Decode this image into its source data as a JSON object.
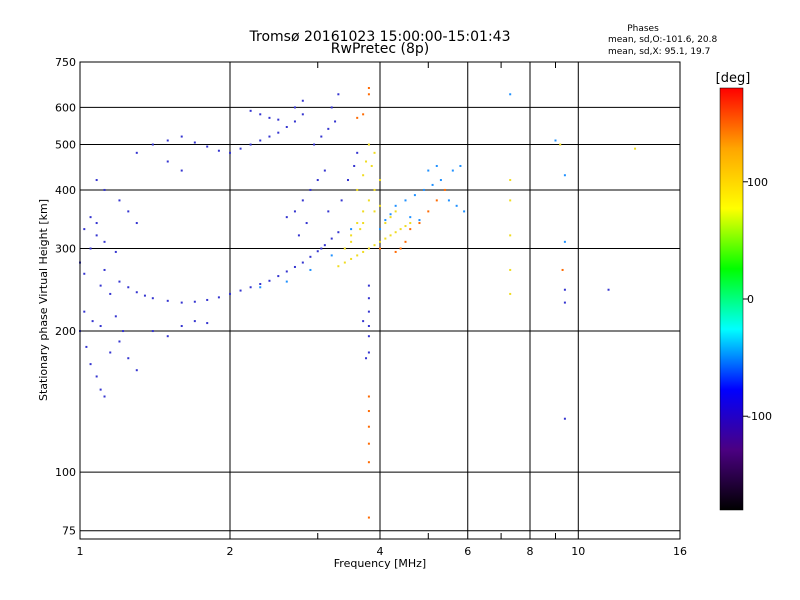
{
  "chart_data": {
    "type": "scatter",
    "title": "Tromsø 20161023 15:00:00-15:01:43",
    "subtitle": "RwPretec (8p)",
    "xlabel": "Frequency [MHz]",
    "ylabel": "Stationary phase Virtual Height [km]",
    "x_scale": "log",
    "y_scale": "log",
    "xlim": [
      1,
      16
    ],
    "ylim": [
      72,
      750
    ],
    "x_ticks": [
      1,
      2,
      4,
      6,
      8,
      10,
      16
    ],
    "x_tick_labels": [
      "1",
      "2",
      "4",
      "6",
      "8",
      "10",
      "16"
    ],
    "x_minor_ticks": [
      3,
      5,
      7,
      9
    ],
    "y_ticks": [
      75,
      100,
      200,
      300,
      400,
      500,
      600,
      750
    ],
    "y_tick_labels": [
      "75",
      "100",
      "200",
      "300",
      "400",
      "500",
      "600",
      "750"
    ],
    "grid": true,
    "stats_box": {
      "heading": "Phases",
      "line_o": "mean, sd,O:-101.6, 20.8",
      "line_x": "mean, sd,X:  95.1, 19.7"
    },
    "colorbar": {
      "label": "[deg]",
      "range": [
        -180,
        180
      ],
      "ticks": [
        100,
        0,
        -100
      ],
      "tick_labels": [
        "100",
        "0",
        "-100"
      ],
      "stops": [
        "#000000",
        "#4b0082",
        "#0000ff",
        "#00ffff",
        "#00ff00",
        "#ffff00",
        "#ffa500",
        "#ff0000"
      ]
    },
    "series": [
      {
        "mode": "O",
        "color": "#3434d0",
        "points": [
          [
            1.0,
            280
          ],
          [
            1.02,
            265
          ],
          [
            1.05,
            300
          ],
          [
            1.08,
            320
          ],
          [
            1.1,
            250
          ],
          [
            1.12,
            270
          ],
          [
            1.15,
            240
          ],
          [
            1.2,
            255
          ],
          [
            1.25,
            248
          ],
          [
            1.3,
            242
          ],
          [
            1.35,
            238
          ],
          [
            1.4,
            235
          ],
          [
            1.5,
            232
          ],
          [
            1.6,
            230
          ],
          [
            1.7,
            231
          ],
          [
            1.8,
            233
          ],
          [
            1.9,
            236
          ],
          [
            2.0,
            240
          ],
          [
            2.1,
            244
          ],
          [
            2.2,
            248
          ],
          [
            2.3,
            252
          ],
          [
            2.4,
            256
          ],
          [
            2.5,
            262
          ],
          [
            2.6,
            268
          ],
          [
            2.7,
            274
          ],
          [
            2.8,
            280
          ],
          [
            2.9,
            288
          ],
          [
            3.0,
            296
          ],
          [
            3.1,
            305
          ],
          [
            3.2,
            315
          ],
          [
            3.3,
            325
          ],
          [
            1.0,
            200
          ],
          [
            1.03,
            185
          ],
          [
            1.05,
            170
          ],
          [
            1.08,
            160
          ],
          [
            1.1,
            150
          ],
          [
            1.12,
            145
          ],
          [
            1.15,
            180
          ],
          [
            1.2,
            190
          ],
          [
            1.25,
            175
          ],
          [
            1.3,
            165
          ],
          [
            1.02,
            220
          ],
          [
            1.06,
            210
          ],
          [
            1.1,
            205
          ],
          [
            1.18,
            215
          ],
          [
            1.22,
            200
          ],
          [
            1.02,
            330
          ],
          [
            1.05,
            350
          ],
          [
            1.08,
            340
          ],
          [
            1.12,
            310
          ],
          [
            1.18,
            295
          ],
          [
            1.3,
            480
          ],
          [
            1.4,
            500
          ],
          [
            1.5,
            510
          ],
          [
            1.6,
            520
          ],
          [
            1.7,
            505
          ],
          [
            1.8,
            495
          ],
          [
            1.9,
            485
          ],
          [
            2.0,
            480
          ],
          [
            2.1,
            490
          ],
          [
            2.2,
            500
          ],
          [
            2.3,
            510
          ],
          [
            2.4,
            520
          ],
          [
            2.5,
            530
          ],
          [
            2.6,
            545
          ],
          [
            2.7,
            560
          ],
          [
            2.8,
            580
          ],
          [
            1.5,
            460
          ],
          [
            1.6,
            440
          ],
          [
            1.4,
            200
          ],
          [
            1.5,
            195
          ],
          [
            1.6,
            205
          ],
          [
            1.7,
            210
          ],
          [
            1.8,
            208
          ],
          [
            2.6,
            350
          ],
          [
            2.7,
            360
          ],
          [
            2.8,
            380
          ],
          [
            2.9,
            400
          ],
          [
            3.0,
            420
          ],
          [
            3.1,
            440
          ],
          [
            2.75,
            320
          ],
          [
            2.85,
            340
          ],
          [
            2.95,
            500
          ],
          [
            3.05,
            520
          ],
          [
            3.15,
            540
          ],
          [
            3.2,
            600
          ],
          [
            3.25,
            560
          ],
          [
            2.7,
            600
          ],
          [
            2.8,
            620
          ],
          [
            3.3,
            640
          ],
          [
            3.05,
            300
          ],
          [
            3.15,
            360
          ],
          [
            3.35,
            380
          ],
          [
            3.45,
            420
          ],
          [
            3.55,
            450
          ],
          [
            3.6,
            480
          ],
          [
            1.08,
            420
          ],
          [
            1.12,
            400
          ],
          [
            1.2,
            380
          ],
          [
            1.25,
            360
          ],
          [
            1.3,
            340
          ],
          [
            3.8,
            250
          ],
          [
            3.8,
            235
          ],
          [
            3.8,
            220
          ],
          [
            3.8,
            205
          ],
          [
            3.8,
            195
          ],
          [
            3.8,
            180
          ],
          [
            9.4,
            245
          ],
          [
            9.4,
            230
          ],
          [
            9.4,
            130
          ],
          [
            11.5,
            245
          ],
          [
            2.3,
            580
          ],
          [
            2.4,
            570
          ],
          [
            2.5,
            565
          ],
          [
            2.2,
            590
          ],
          [
            3.7,
            210
          ],
          [
            3.75,
            175
          ]
        ]
      },
      {
        "mode": "X",
        "color": "#f0dc20",
        "points": [
          [
            3.3,
            275
          ],
          [
            3.4,
            280
          ],
          [
            3.5,
            285
          ],
          [
            3.6,
            290
          ],
          [
            3.7,
            295
          ],
          [
            3.8,
            300
          ],
          [
            3.9,
            305
          ],
          [
            4.0,
            310
          ],
          [
            4.1,
            315
          ],
          [
            4.2,
            320
          ],
          [
            4.3,
            325
          ],
          [
            4.4,
            330
          ],
          [
            4.5,
            335
          ],
          [
            4.6,
            340
          ],
          [
            3.5,
            320
          ],
          [
            3.6,
            340
          ],
          [
            3.7,
            360
          ],
          [
            3.8,
            380
          ],
          [
            3.9,
            400
          ],
          [
            4.0,
            420
          ],
          [
            3.85,
            450
          ],
          [
            3.9,
            480
          ],
          [
            3.6,
            400
          ],
          [
            3.7,
            430
          ],
          [
            3.75,
            460
          ],
          [
            3.8,
            500
          ],
          [
            3.7,
            340
          ],
          [
            3.9,
            360
          ],
          [
            4.1,
            340
          ],
          [
            3.4,
            300
          ],
          [
            3.5,
            310
          ],
          [
            3.65,
            330
          ],
          [
            4.2,
            350
          ],
          [
            4.3,
            360
          ],
          [
            4.0,
            370
          ],
          [
            7.3,
            420
          ],
          [
            7.3,
            380
          ],
          [
            7.3,
            320
          ],
          [
            7.3,
            270
          ],
          [
            7.3,
            240
          ],
          [
            13.0,
            490
          ],
          [
            9.2,
            500
          ]
        ]
      },
      {
        "mode": "X-strong",
        "color": "#ff6a00",
        "points": [
          [
            3.8,
            660
          ],
          [
            3.8,
            640
          ],
          [
            3.6,
            570
          ],
          [
            3.7,
            580
          ],
          [
            4.4,
            300
          ],
          [
            4.5,
            310
          ],
          [
            4.3,
            295
          ],
          [
            4.6,
            330
          ],
          [
            5.0,
            360
          ],
          [
            5.2,
            380
          ],
          [
            5.4,
            400
          ],
          [
            4.8,
            340
          ],
          [
            3.8,
            145
          ],
          [
            3.8,
            135
          ],
          [
            3.8,
            125
          ],
          [
            3.8,
            115
          ],
          [
            3.8,
            105
          ],
          [
            3.8,
            80
          ],
          [
            9.3,
            270
          ],
          [
            4.0,
            300
          ]
        ]
      },
      {
        "mode": "mixed",
        "color": "#1e90ff",
        "points": [
          [
            4.0,
            330
          ],
          [
            4.1,
            345
          ],
          [
            4.2,
            355
          ],
          [
            4.3,
            370
          ],
          [
            4.5,
            380
          ],
          [
            4.7,
            390
          ],
          [
            4.9,
            400
          ],
          [
            5.1,
            410
          ],
          [
            5.3,
            420
          ],
          [
            5.6,
            440
          ],
          [
            5.8,
            450
          ],
          [
            5.5,
            380
          ],
          [
            5.7,
            370
          ],
          [
            5.9,
            360
          ],
          [
            4.6,
            350
          ],
          [
            4.8,
            345
          ],
          [
            5.0,
            440
          ],
          [
            5.2,
            450
          ],
          [
            7.3,
            640
          ],
          [
            9.4,
            430
          ],
          [
            9.0,
            510
          ],
          [
            9.4,
            310
          ],
          [
            3.5,
            330
          ],
          [
            3.2,
            290
          ],
          [
            2.9,
            270
          ],
          [
            2.6,
            255
          ],
          [
            2.3,
            248
          ]
        ]
      }
    ]
  }
}
